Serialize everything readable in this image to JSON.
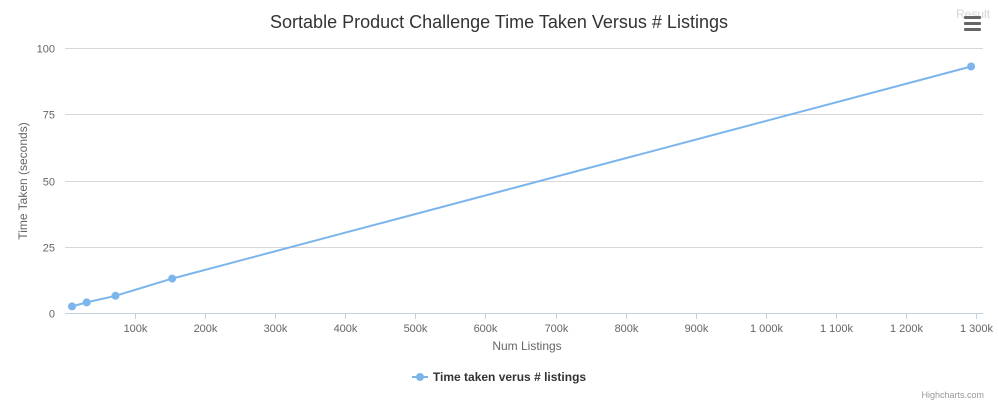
{
  "result_label": "Result",
  "credits": "Highcharts.com",
  "chart_data": {
    "type": "line",
    "title": "Sortable Product Challenge Time Taken Versus # Listings",
    "xlabel": "Num Listings",
    "ylabel": "Time Taken (seconds)",
    "ylim": [
      0,
      100
    ],
    "y_ticks": [
      0,
      25,
      50,
      75,
      100
    ],
    "y_tick_labels": [
      "0",
      "25",
      "50",
      "75",
      "100"
    ],
    "xlim": [
      0,
      1310000
    ],
    "x_ticks": [
      100000,
      200000,
      300000,
      400000,
      500000,
      600000,
      700000,
      800000,
      900000,
      1000000,
      1100000,
      1200000,
      1300000
    ],
    "x_tick_labels": [
      "100k",
      "200k",
      "300k",
      "400k",
      "500k",
      "600k",
      "700k",
      "800k",
      "900k",
      "1 000k",
      "1 100k",
      "1 200k",
      "1 300k"
    ],
    "grid": true,
    "legend_position": "bottom-center",
    "series": [
      {
        "name": "Time taken verus # listings",
        "color": "#7cb5ec",
        "x": [
          10000,
          31000,
          72000,
          153000,
          1293000
        ],
        "y": [
          2.5,
          4,
          6.5,
          13,
          93
        ]
      }
    ]
  },
  "icons": {
    "menu": "hamburger-menu-icon",
    "legend_marker": "circle-marker-icon"
  }
}
